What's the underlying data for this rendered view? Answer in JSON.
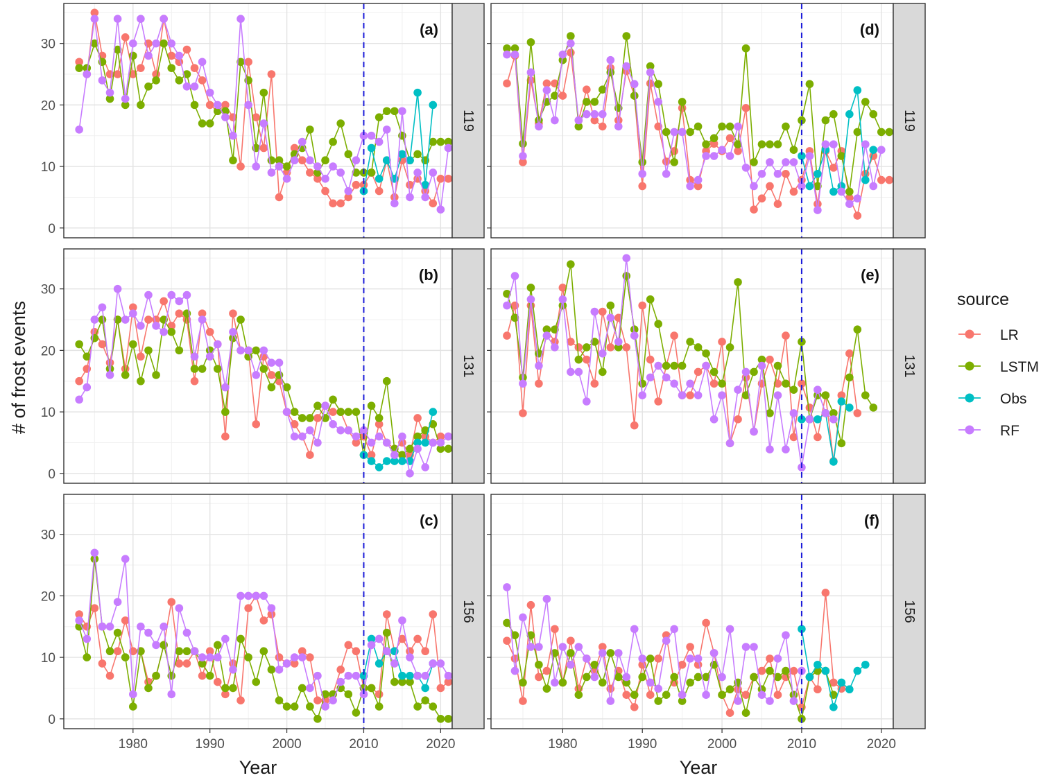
{
  "chart_data": {
    "type": "line",
    "xlabel": "Year",
    "ylabel": "# of frost events",
    "xlim": [
      1971,
      2021.5
    ],
    "ylim": [
      -1.6,
      36.5
    ],
    "xticks": [
      1980,
      1990,
      2000,
      2010,
      2020
    ],
    "yticks": [
      0,
      10,
      20,
      30
    ],
    "vline_x": 2010,
    "vline_color": "#1a1ad9",
    "legend": {
      "title": "source",
      "position": "right",
      "entries": [
        {
          "name": "LR",
          "color": "#F8766D"
        },
        {
          "name": "LSTM",
          "color": "#7CAE00"
        },
        {
          "name": "Obs",
          "color": "#00BFC4"
        },
        {
          "name": "RF",
          "color": "#C77CFF"
        }
      ]
    },
    "panels": [
      {
        "tag": "(a)",
        "strip": "119",
        "column": "left",
        "row": 0,
        "series": {
          "LR": [
            27,
            25,
            35,
            28,
            25,
            25,
            31,
            25,
            26,
            30,
            25,
            34,
            28,
            27,
            29,
            26,
            24,
            20,
            19,
            20,
            18,
            10,
            27,
            18,
            13,
            25,
            5,
            9,
            13,
            11,
            9,
            8,
            6,
            4,
            4,
            5,
            7,
            7,
            9,
            6,
            11,
            5,
            11,
            7,
            8,
            6,
            4,
            8,
            8
          ],
          "LSTM": [
            26,
            26,
            30,
            27,
            21,
            29,
            20,
            28,
            20,
            23,
            24,
            30,
            26,
            24,
            25,
            20,
            17,
            17,
            19,
            19,
            11,
            27,
            24,
            13,
            22,
            11,
            11,
            10,
            12,
            13,
            16,
            9,
            11,
            14,
            17,
            12,
            9,
            9,
            9,
            18,
            19,
            19,
            15,
            11,
            12,
            11,
            14,
            14,
            14
          ],
          "RF": [
            16,
            25,
            34,
            24,
            22,
            34,
            21,
            30,
            34,
            28,
            30,
            34,
            30,
            28,
            23,
            23,
            27,
            22,
            20,
            18,
            15,
            34,
            20,
            10,
            17,
            9,
            10,
            8,
            11,
            14,
            11,
            10,
            8,
            10,
            9,
            6,
            11,
            15,
            15,
            14,
            16,
            4,
            19,
            5,
            9,
            5,
            9,
            3,
            13
          ],
          "Obs": [
            6,
            13,
            8,
            11,
            8,
            12,
            11,
            22,
            7,
            20
          ]
        }
      },
      {
        "tag": "(b)",
        "strip": "131",
        "column": "left",
        "row": 1,
        "series": {
          "LR": [
            15,
            17,
            23,
            21,
            18,
            25,
            17,
            27,
            19,
            25,
            25,
            28,
            24,
            26,
            25,
            15,
            26,
            23,
            21,
            6,
            26,
            20,
            20,
            8,
            19,
            16,
            15,
            10,
            8,
            6,
            3,
            9,
            11,
            10,
            10,
            7,
            5,
            6,
            3,
            8,
            5,
            4,
            5,
            3,
            9,
            6,
            5,
            6,
            6
          ],
          "LSTM": [
            21,
            19,
            22,
            25,
            17,
            25,
            16,
            21,
            15,
            20,
            16,
            25,
            23,
            20,
            26,
            17,
            17,
            20,
            17,
            10,
            22,
            25,
            19,
            20,
            17,
            14,
            16,
            14,
            10,
            9,
            9,
            11,
            9,
            12,
            10,
            10,
            10,
            3,
            11,
            9,
            15,
            4,
            3,
            4,
            6,
            7,
            8,
            4,
            4
          ],
          "RF": [
            12,
            14,
            25,
            27,
            16,
            30,
            25,
            26,
            24,
            29,
            24,
            23,
            29,
            28,
            29,
            19,
            25,
            19,
            21,
            14,
            23,
            20,
            20,
            16,
            20,
            18,
            18,
            10,
            6,
            6,
            7,
            5,
            11,
            8,
            7,
            7,
            6,
            7,
            5,
            6,
            5,
            3,
            6,
            0,
            4,
            1,
            5,
            5,
            6
          ],
          "Obs": [
            3,
            2,
            1,
            2,
            2,
            2,
            2,
            5,
            5,
            10
          ]
        }
      },
      {
        "tag": "(c)",
        "strip": "156",
        "column": "left",
        "row": 2,
        "series": {
          "LR": [
            17,
            15,
            18,
            9,
            7,
            11,
            16,
            11,
            11,
            6,
            7,
            12,
            19,
            9,
            9,
            11,
            7,
            11,
            6,
            4,
            9,
            3,
            18,
            20,
            16,
            17,
            10,
            9,
            9,
            11,
            10,
            3,
            3,
            4,
            8,
            12,
            11,
            5,
            5,
            4,
            17,
            11,
            13,
            11,
            13,
            11,
            17,
            5,
            6
          ],
          "LSTM": [
            15,
            10,
            26,
            15,
            11,
            14,
            10,
            2,
            11,
            5,
            7,
            12,
            7,
            11,
            11,
            11,
            9,
            7,
            12,
            5,
            5,
            13,
            10,
            6,
            11,
            8,
            3,
            2,
            2,
            5,
            2,
            0,
            4,
            4,
            5,
            4,
            1,
            5,
            5,
            2,
            14,
            6,
            6,
            6,
            2,
            3,
            2,
            0,
            0
          ],
          "RF": [
            16,
            13,
            27,
            15,
            15,
            19,
            26,
            4,
            15,
            14,
            12,
            15,
            4,
            18,
            14,
            11,
            10,
            10,
            10,
            13,
            8,
            20,
            20,
            20,
            20,
            18,
            8,
            9,
            10,
            10,
            5,
            7,
            2,
            3,
            6,
            7,
            7,
            4,
            12,
            13,
            11,
            9,
            16,
            10,
            7,
            7,
            9,
            9,
            7
          ],
          "Obs": [
            7,
            13,
            9,
            11,
            11,
            7,
            7,
            7,
            5,
            9
          ]
        }
      },
      {
        "tag": "(d)",
        "strip": "119",
        "column": "right",
        "row": 0,
        "series": {
          "LR": [
            23.5,
            28,
            10.7,
            24,
            17,
            23.5,
            23.5,
            21.5,
            28.5,
            17.5,
            22.5,
            17.5,
            16.5,
            26,
            17.5,
            25.5,
            21.5,
            6.8,
            23.5,
            16.5,
            10.8,
            12.5,
            19.5,
            7.8,
            6.8,
            12.5,
            13.7,
            12.5,
            14.6,
            12.5,
            19.5,
            3,
            4.8,
            6.8,
            3.9,
            8.8,
            5.9,
            7.8,
            12.5,
            3.9,
            12.5,
            9.8,
            12.5,
            4.9,
            2,
            8.8,
            11.7,
            7.8,
            7.8
          ],
          "LSTM": [
            29.2,
            29.2,
            13.7,
            30.2,
            17.5,
            20.5,
            21.5,
            27.3,
            31.2,
            16.5,
            20.5,
            20.5,
            22.5,
            25.3,
            19.5,
            31.2,
            21.5,
            10.7,
            26.3,
            23.4,
            15.6,
            10.7,
            20.5,
            15.6,
            16.5,
            13.6,
            14.6,
            16.5,
            16.5,
            13.6,
            29.2,
            10.7,
            13.6,
            13.6,
            13.6,
            16.5,
            12.7,
            17.5,
            23.4,
            6.8,
            17.5,
            18.5,
            11.7,
            5.9,
            15.6,
            20.5,
            18.5,
            15.6,
            15.6
          ],
          "RF": [
            28.2,
            28.2,
            11.7,
            25.3,
            16.5,
            22.4,
            17.5,
            28.2,
            30,
            17.5,
            18.5,
            18.5,
            18.5,
            27.3,
            16.5,
            26.3,
            23.4,
            8.8,
            25.3,
            20.5,
            8.8,
            15.6,
            15.6,
            6.8,
            7.8,
            11.7,
            11.7,
            12.7,
            11.7,
            16.5,
            9.8,
            6.8,
            8.8,
            10.7,
            8.8,
            10.7,
            10.7,
            6.8,
            11.7,
            2.9,
            13.6,
            13.6,
            5.9,
            3.9,
            4.8,
            13.6,
            6.8,
            12.7
          ],
          "Obs": [
            11.7,
            6.8,
            8.8,
            12.7,
            5.9,
            6.8,
            18.5,
            22.4,
            7.8,
            12.7
          ]
        }
      },
      {
        "tag": "(e)",
        "strip": "131",
        "column": "right",
        "row": 1,
        "series": {
          "LR": [
            22.4,
            27.3,
            9.8,
            27.3,
            14.6,
            23.4,
            21.4,
            30.2,
            21.4,
            20.5,
            18.5,
            14.6,
            26.3,
            20.5,
            25.3,
            20.5,
            7.8,
            27.3,
            18.5,
            11.7,
            17.5,
            22.4,
            12.7,
            12.7,
            16.5,
            17.5,
            14.6,
            21.4,
            4.9,
            8.8,
            15.6,
            6.8,
            14.6,
            18.5,
            14.6,
            22.4,
            5.9,
            14.6,
            10.7,
            5.9,
            12.7,
            2,
            12.7,
            19.5,
            9.8
          ],
          "LSTM": [
            29.2,
            25.3,
            15.6,
            30.2,
            19.5,
            23.4,
            23.4,
            27.3,
            34,
            18.5,
            20.5,
            21.4,
            16.5,
            27.3,
            20.5,
            32.1,
            23.4,
            14.6,
            28.3,
            24.3,
            17.5,
            17.5,
            17.5,
            21.4,
            20.5,
            19.5,
            16.5,
            14.6,
            20.5,
            31.1,
            12.7,
            16.5,
            18.5,
            9.8,
            17.5,
            14.6,
            13.6,
            21.4,
            8.8,
            12.7,
            12.7,
            9.8,
            4.9,
            15.6,
            23.4,
            12.7,
            10.7
          ],
          "RF": [
            27.3,
            32.1,
            14.6,
            28.3,
            17.5,
            22.4,
            20.5,
            28.3,
            16.5,
            16.5,
            11.7,
            26.3,
            19.5,
            25.3,
            21.4,
            35,
            22.4,
            12.7,
            15.6,
            17.5,
            15.6,
            14.6,
            12.7,
            14.6,
            12.7,
            17.5,
            8.8,
            12.7,
            4.9,
            13.6,
            16.5,
            6.8,
            17.5,
            3.9,
            12.7,
            3.9,
            9.8,
            0.98,
            8.8,
            13.6,
            9.8,
            8.8
          ],
          "Obs": [
            8.8,
            8.8,
            8.8,
            9.8,
            1.9,
            11.7,
            10.7
          ]
        }
      },
      {
        "tag": "(f)",
        "strip": "156",
        "column": "right",
        "row": 2,
        "series": {
          "LR": [
            12.7,
            9.8,
            2.9,
            18.5,
            6.8,
            7.8,
            14.6,
            5.9,
            12.7,
            4.9,
            9.8,
            7.8,
            11.7,
            4.9,
            7.8,
            3.9,
            1.9,
            8.8,
            3.9,
            9.8,
            13.6,
            5.9,
            8.8,
            11.7,
            8.8,
            15.6,
            10.7,
            3.9,
            0.97,
            4.8,
            3.9,
            6.8,
            7.8,
            9.8,
            3.9,
            6.8,
            7.8,
            1.9,
            6.8,
            4.8,
            20.5,
            5.9,
            4.9
          ],
          "LSTM": [
            15.6,
            13.6,
            5.9,
            13.6,
            8.8,
            4.9,
            10.7,
            5.9,
            10.7,
            3.9,
            6.8,
            8.8,
            5.9,
            10.7,
            6.8,
            5.9,
            3.9,
            6.8,
            9.8,
            2.9,
            3.9,
            6.8,
            2.9,
            5.9,
            6.8,
            6.8,
            8.8,
            3.9,
            4.8,
            5.9,
            0.97,
            6.8,
            4.8,
            7.8,
            6.8,
            7.8,
            3.9,
            0,
            6.8,
            7.8,
            7.8,
            3.9
          ],
          "RF": [
            21.4,
            7.8,
            16.5,
            11.7,
            11.7,
            19.5,
            5.9,
            11.7,
            8.8,
            11.7,
            9.8,
            6.8,
            10.7,
            2.9,
            10.7,
            6.8,
            14.6,
            9.8,
            5.9,
            4.9,
            12.7,
            14.6,
            3.9,
            9.8,
            9.8,
            3.9,
            10.7,
            6.8,
            14.6,
            2.9,
            11.7,
            11.7,
            3.9,
            2.9,
            9.8,
            13.6,
            2.9,
            7.8
          ],
          "Obs": [
            14.6,
            6.8,
            8.8,
            7.8,
            1.9,
            5.9,
            4.8,
            7.8,
            8.8
          ]
        }
      }
    ]
  }
}
